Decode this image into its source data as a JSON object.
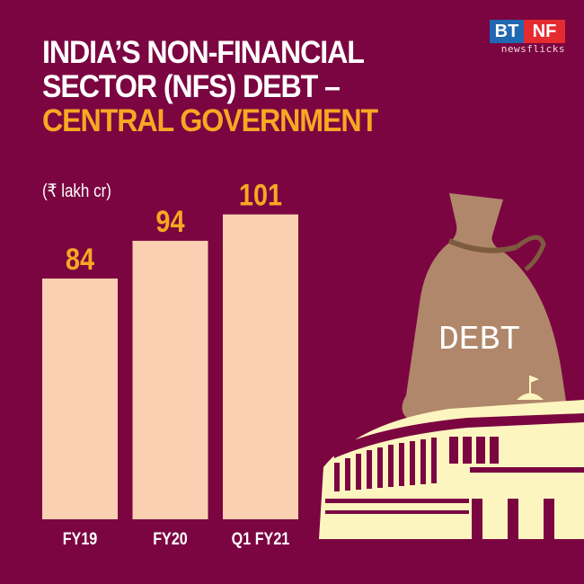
{
  "title": {
    "line1": "INDIA’S NON-FINANCIAL",
    "line2": "SECTOR (NFS) DEBT –",
    "line3": "CENTRAL GOVERNMENT"
  },
  "logo": {
    "bt": "BT",
    "nf": "NF",
    "sub": "newsflicks"
  },
  "illustration": {
    "bag_label": "DEBT"
  },
  "colors": {
    "background": "#7b0541",
    "bar": "#fbd0b2",
    "value_label": "#f7a823",
    "title_highlight": "#f7a823"
  },
  "chart_data": {
    "type": "bar",
    "title": "INDIA’S NON-FINANCIAL SECTOR (NFS) DEBT – CENTRAL GOVERNMENT",
    "ylabel": "(₹ lakh cr)",
    "xlabel": "",
    "categories": [
      "FY19",
      "FY20",
      "Q1 FY21"
    ],
    "values": [
      84,
      94,
      101
    ],
    "data_labels": [
      "84",
      "94",
      "101"
    ],
    "grid": false
  }
}
